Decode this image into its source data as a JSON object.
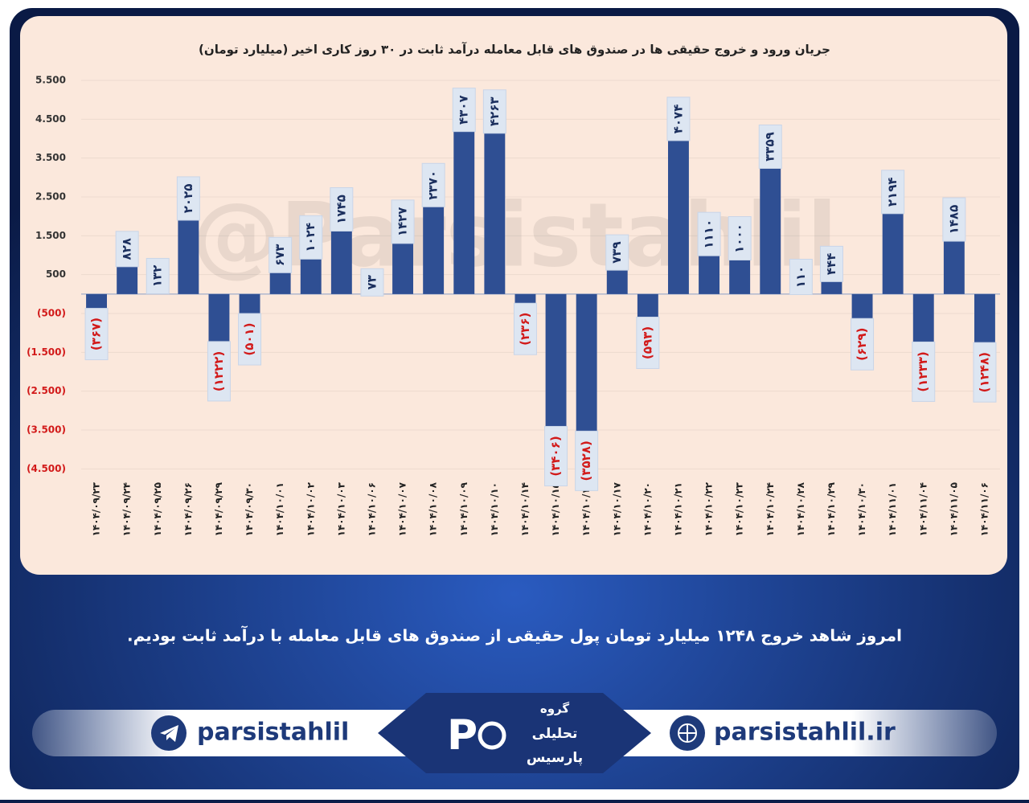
{
  "chart_data": {
    "type": "bar",
    "title": "جریان ورود و خروج حقیقی ها در صندوق های قابل معامله درآمد ثابت در ۳۰ روز کاری اخیر (میلیارد تومان)",
    "categories": [
      "۱۴۰۴/۰۹/۲۳",
      "۱۴۰۴/۰۹/۲۴",
      "۱۴۰۴/۰۹/۲۵",
      "۱۴۰۴/۰۹/۲۶",
      "۱۴۰۴/۰۹/۲۹",
      "۱۴۰۴/۰۹/۳۰",
      "۱۴۰۴/۱۰/۰۱",
      "۱۴۰۴/۱۰/۰۲",
      "۱۴۰۴/۱۰/۰۳",
      "۱۴۰۴/۱۰/۰۶",
      "۱۴۰۴/۱۰/۰۷",
      "۱۴۰۴/۱۰/۰۸",
      "۱۴۰۴/۱۰/۰۹",
      "۱۴۰۴/۱۰/۱۰",
      "۱۴۰۴/۱۰/۱۴",
      "۱۴۰۴/۱۰/۱۵",
      "۱۴۰۴/۱۰/۱۶",
      "۱۴۰۴/۱۰/۱۷",
      "۱۴۰۴/۱۰/۲۰",
      "۱۴۰۴/۱۰/۲۱",
      "۱۴۰۴/۱۰/۲۲",
      "۱۴۰۴/۱۰/۲۳",
      "۱۴۰۴/۱۰/۲۴",
      "۱۴۰۴/۱۰/۲۸",
      "۱۴۰۴/۱۰/۲۹",
      "۱۴۰۴/۱۰/۳۰",
      "۱۴۰۴/۱۱/۰۱",
      "۱۴۰۴/۱۱/۰۴",
      "۱۴۰۴/۱۱/۰۵",
      "۱۴۰۴/۱۱/۰۶"
    ],
    "values": [
      -367,
      828,
      132,
      2025,
      -1222,
      -501,
      673,
      1024,
      1745,
      73,
      1427,
      2370,
      4307,
      4263,
      -236,
      -3406,
      -3528,
      739,
      -593,
      4074,
      1110,
      1000,
      3359,
      110,
      444,
      -629,
      2194,
      -1233,
      1485,
      -1248
    ],
    "value_labels": [
      "(۳۶۷)",
      "۸۲۸",
      "۱۳۲",
      "۲۰۲۵",
      "(۱۲۲۲)",
      "(۵۰۱)",
      "۶۷۳",
      "۱۰۲۴",
      "۱۷۴۵",
      "۷۳",
      "۱۴۲۷",
      "۲۳۷۰",
      "۴۳۰۷",
      "۴۲۶۳",
      "(۲۳۶)",
      "(۳۴۰۶)",
      "(۳۵۲۸)",
      "۷۳۹",
      "(۵۹۳)",
      "۴۰۷۴",
      "۱۱۱۰",
      "۱۰۰۰",
      "۳۳۵۹",
      "۱۱۰",
      "۴۴۴",
      "(۶۲۹)",
      "۲۱۹۴",
      "(۱۲۳۳)",
      "۱۴۸۵",
      "(۱۲۴۸)"
    ],
    "color": "#2f4f93",
    "ylim": [
      -4700,
      5500
    ],
    "yticks": [
      {
        "value": 5500,
        "label": "5.500"
      },
      {
        "value": 4500,
        "label": "4.500"
      },
      {
        "value": 3500,
        "label": "3.500"
      },
      {
        "value": 2500,
        "label": "2.500"
      },
      {
        "value": 1500,
        "label": "1.500"
      },
      500,
      {
        "value": -500,
        "label": "(500)"
      },
      {
        "value": -1500,
        "label": "(1.500)"
      },
      {
        "value": -2500,
        "label": "(2.500)"
      },
      {
        "value": -3500,
        "label": "(3.500)"
      },
      {
        "value": -4500,
        "label": "(4.500)"
      }
    ],
    "grid": true
  },
  "watermark": "@Parsistahlil",
  "footer": {
    "message": "امروز شاهد خروج ۱۲۴۸ میلیارد تومان پول حقیقی از صندوق های قابل معامله با درآمد ثابت بودیم.",
    "telegram": "parsistahlil",
    "website": "parsistahlil.ir",
    "logo": [
      "گروه",
      "تحلیلی",
      "پارسیس"
    ]
  }
}
